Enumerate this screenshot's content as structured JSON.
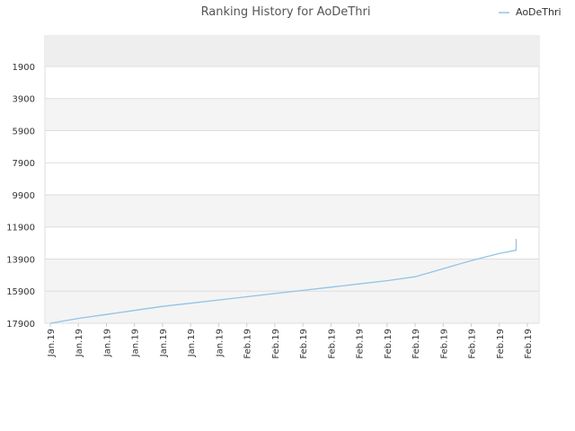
{
  "chart_data": {
    "type": "line",
    "title": "Ranking History for AoDeThri",
    "xlabel": "",
    "ylabel": "",
    "y_inverted": true,
    "ylim": [
      17900,
      0
    ],
    "yticks": [
      "1900",
      "3900",
      "5900",
      "7900",
      "9900",
      "11900",
      "13900",
      "15900",
      "17900"
    ],
    "xticks": [
      "Jan.19",
      "Jan.19",
      "Jan.19",
      "Jan.19",
      "Jan.19",
      "Jan.19",
      "Jan.19",
      "Feb.19",
      "Feb.19",
      "Feb.19",
      "Feb.19",
      "Feb.19",
      "Feb.19",
      "Feb.19",
      "Feb.19",
      "Feb.19",
      "Feb.19",
      "Feb.19"
    ],
    "legend_position": "top-right",
    "grid": true,
    "colors": {
      "line": "#90c4e8",
      "band_dark": "#eeeeee",
      "band_light": "#f4f4f4",
      "grid": "#dddddd"
    },
    "series": [
      {
        "name": "AoDeThri",
        "x": [
          0,
          1,
          2,
          3,
          4,
          5,
          6,
          7,
          8,
          9,
          10,
          11,
          12,
          13,
          14,
          15,
          16,
          16.6,
          16.6
        ],
        "values": [
          17900,
          17600,
          17350,
          17100,
          16850,
          16650,
          16450,
          16250,
          16050,
          15850,
          15650,
          15450,
          15250,
          15000,
          14500,
          14000,
          13550,
          13350,
          12650
        ]
      }
    ]
  }
}
